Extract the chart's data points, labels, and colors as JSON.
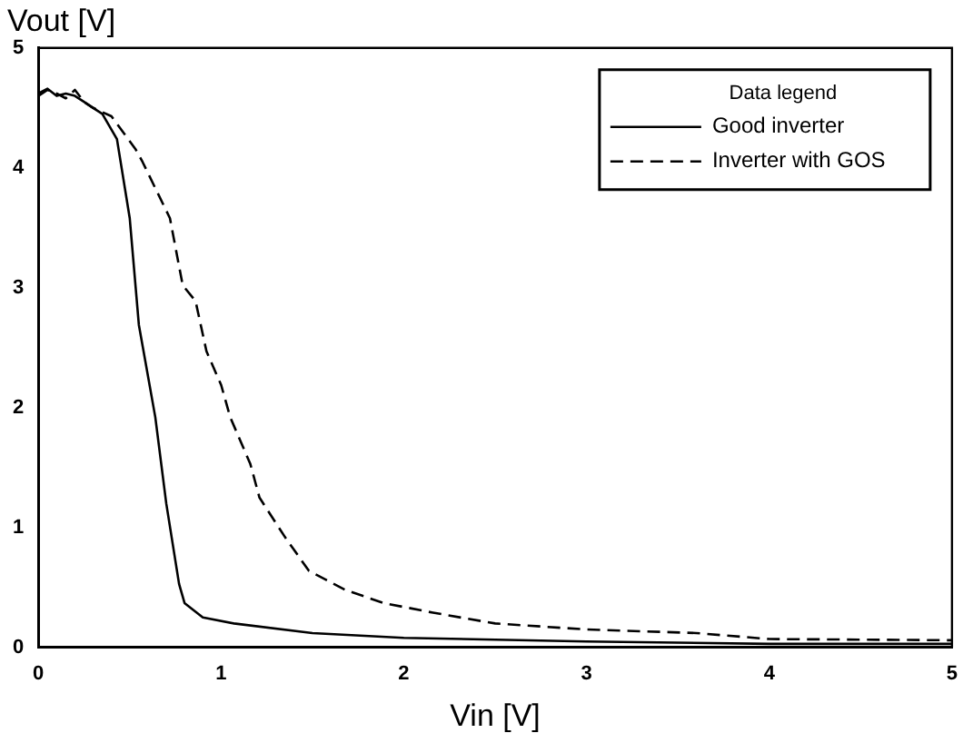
{
  "chart_data": {
    "type": "line",
    "xlabel": "Vin [V]",
    "ylabel": "Vout [V]",
    "legend_title": "Data legend",
    "xlim": [
      0,
      5
    ],
    "xticks": [
      0,
      1,
      2,
      3,
      4,
      5
    ],
    "ylim": [
      0,
      5
    ],
    "yticks": [
      0,
      1,
      2,
      3,
      4,
      5
    ],
    "grid": false,
    "legend": "top right",
    "marker": "none",
    "series": [
      {
        "name": "Good inverter",
        "color": "#000000",
        "line_style": "solid",
        "x": [
          0,
          0.05,
          0.1,
          0.15,
          0.2,
          0.25,
          0.3,
          0.35,
          0.43,
          0.5,
          0.55,
          0.64,
          0.7,
          0.77,
          0.8,
          0.9,
          1.07,
          1.5,
          2,
          3,
          4,
          5
        ],
        "values": [
          4.62,
          4.66,
          4.6,
          4.62,
          4.6,
          4.55,
          4.5,
          4.45,
          4.24,
          3.58,
          2.69,
          1.92,
          1.2,
          0.53,
          0.37,
          0.25,
          0.2,
          0.12,
          0.08,
          0.05,
          0.03,
          0.03
        ]
      },
      {
        "name": "Inverter with GOS",
        "color": "#000000",
        "line_style": "dashed",
        "x": [
          0,
          0.05,
          0.1,
          0.15,
          0.2,
          0.25,
          0.3,
          0.4,
          0.53,
          0.57,
          0.72,
          0.79,
          0.86,
          0.92,
          1.0,
          1.05,
          1.16,
          1.21,
          1.35,
          1.48,
          1.68,
          1.89,
          2.16,
          2.5,
          3,
          3.6,
          4,
          5
        ],
        "values": [
          4.6,
          4.65,
          4.62,
          4.58,
          4.65,
          4.55,
          4.5,
          4.43,
          4.16,
          4.05,
          3.58,
          3.02,
          2.89,
          2.47,
          2.19,
          1.92,
          1.53,
          1.25,
          0.92,
          0.64,
          0.48,
          0.37,
          0.29,
          0.2,
          0.15,
          0.12,
          0.07,
          0.06
        ]
      }
    ]
  }
}
